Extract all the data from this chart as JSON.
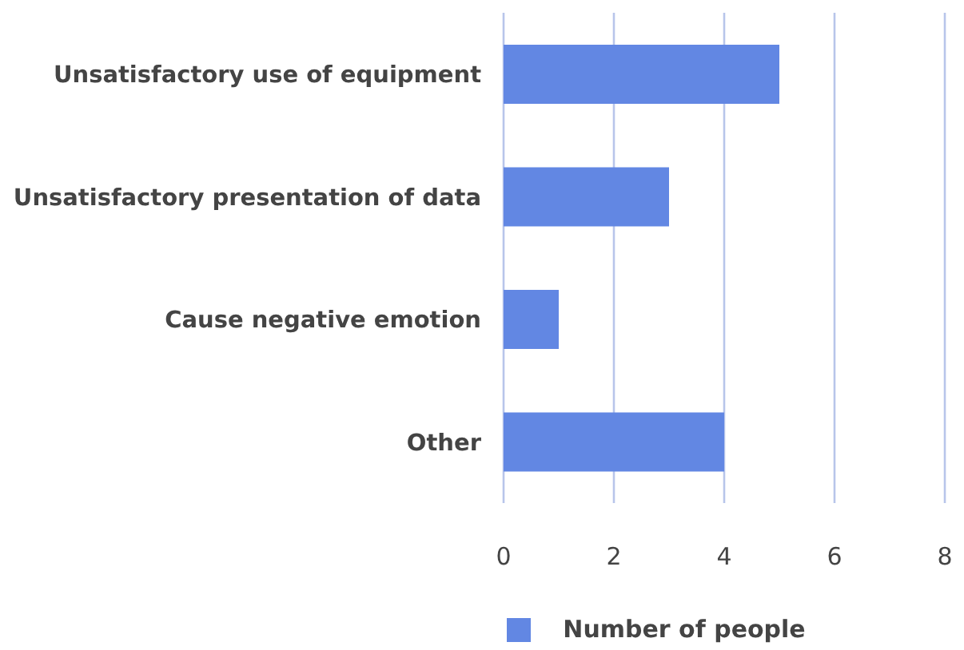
{
  "chart_data": {
    "type": "bar",
    "orientation": "horizontal",
    "categories": [
      "Unsatisfactory use of equipment",
      "Unsatisfactory presentation of data",
      "Cause negative emotion",
      "Other"
    ],
    "series": [
      {
        "name": "Number of people",
        "color": "#6287e3",
        "values": [
          5,
          3,
          1,
          4
        ]
      }
    ],
    "xlim": [
      0,
      8
    ],
    "xticks": [
      0,
      2,
      4,
      6,
      8
    ],
    "grid": "x",
    "legend": "bottom"
  }
}
